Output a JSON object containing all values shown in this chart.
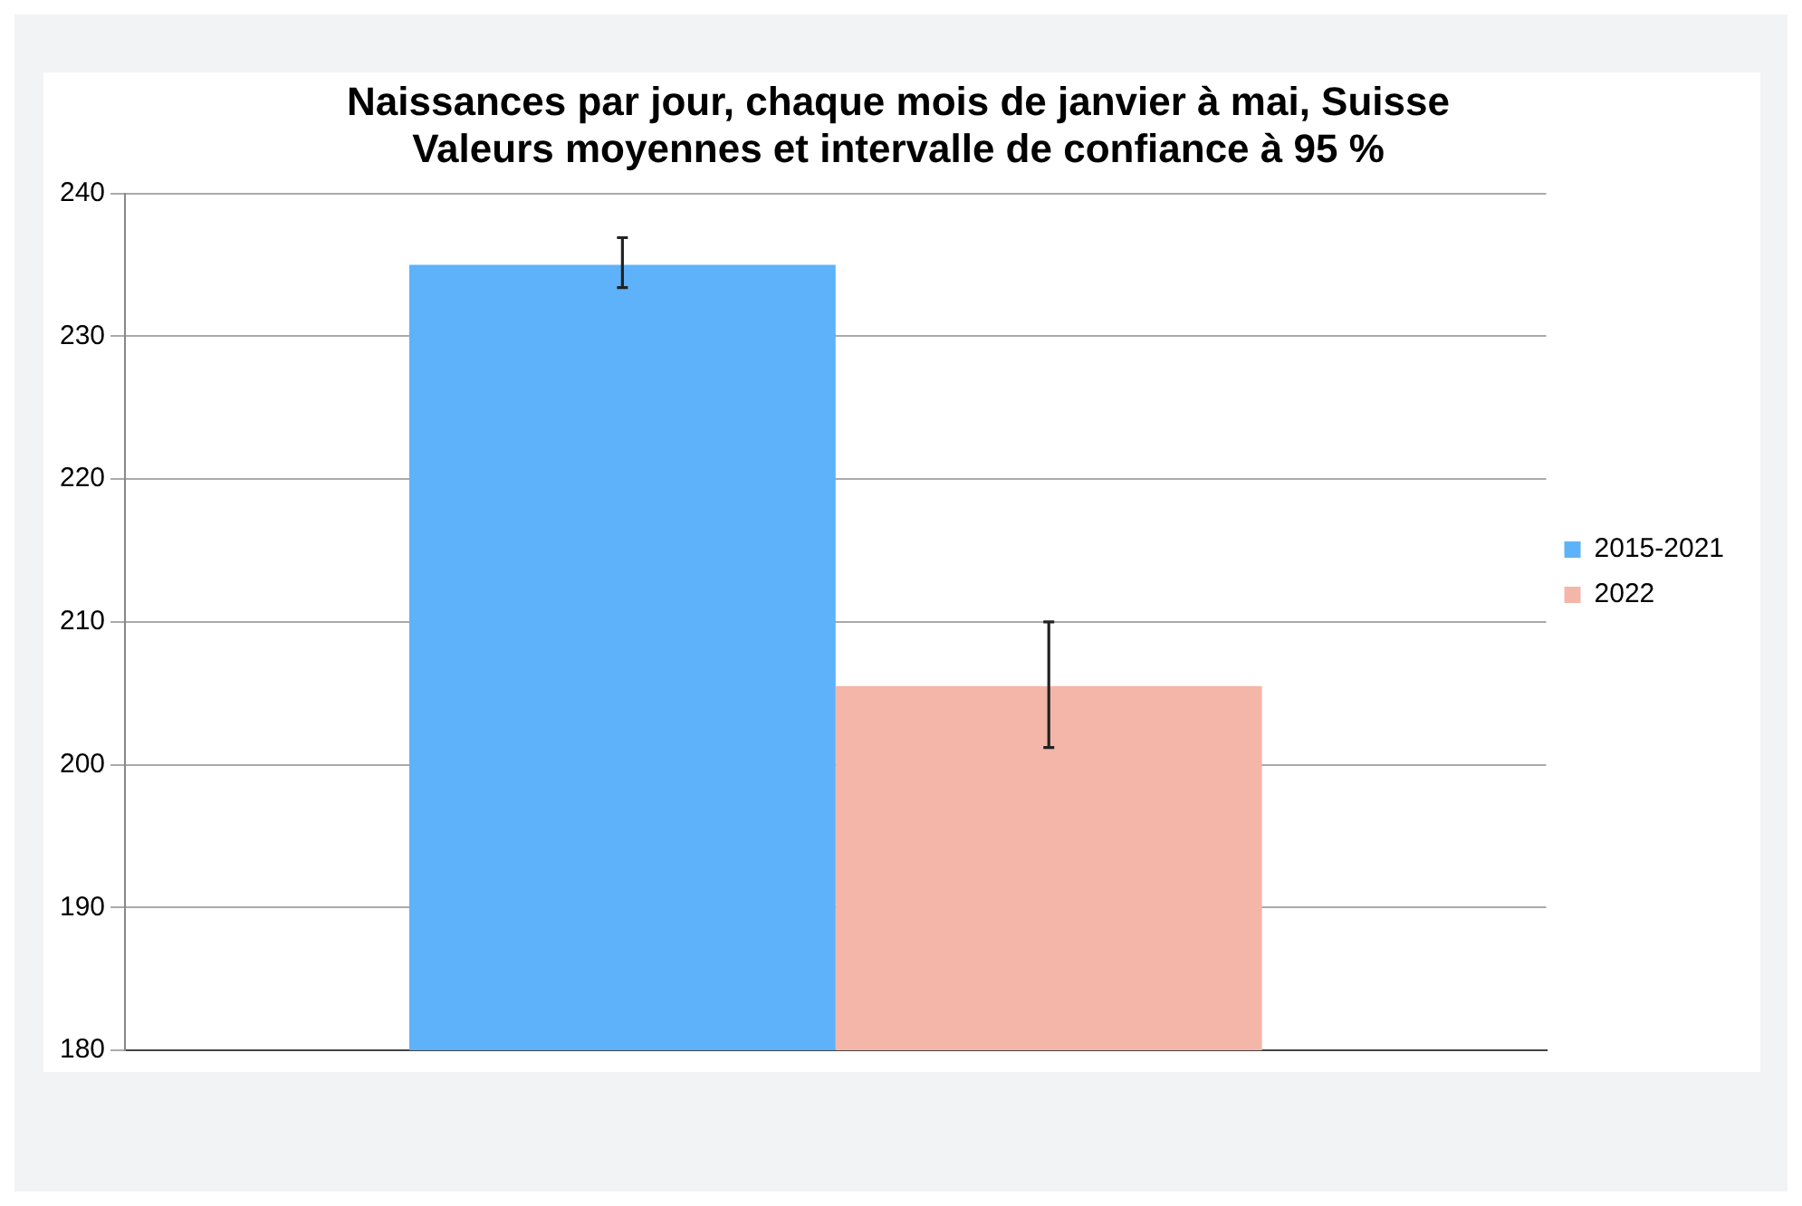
{
  "chart_data": {
    "type": "bar",
    "title": "Naissances par jour, chaque mois de janvier à mai, Suisse",
    "subtitle": "Valeurs moyennes et intervalle de confiance à 95 %",
    "categories": [
      null
    ],
    "series": [
      {
        "name": "2015-2021",
        "color": "#5eb2f9",
        "values": [
          235.0
        ],
        "errors": [
          [
            233.4,
            236.9
          ]
        ]
      },
      {
        "name": "2022",
        "color": "#f3b6a8",
        "values": [
          205.5
        ],
        "errors": [
          [
            201.2,
            210.0
          ]
        ]
      }
    ],
    "ylim": [
      180,
      240
    ],
    "yticks": [
      180,
      190,
      200,
      210,
      220,
      230,
      240
    ],
    "grid": "y",
    "legend": "right"
  }
}
